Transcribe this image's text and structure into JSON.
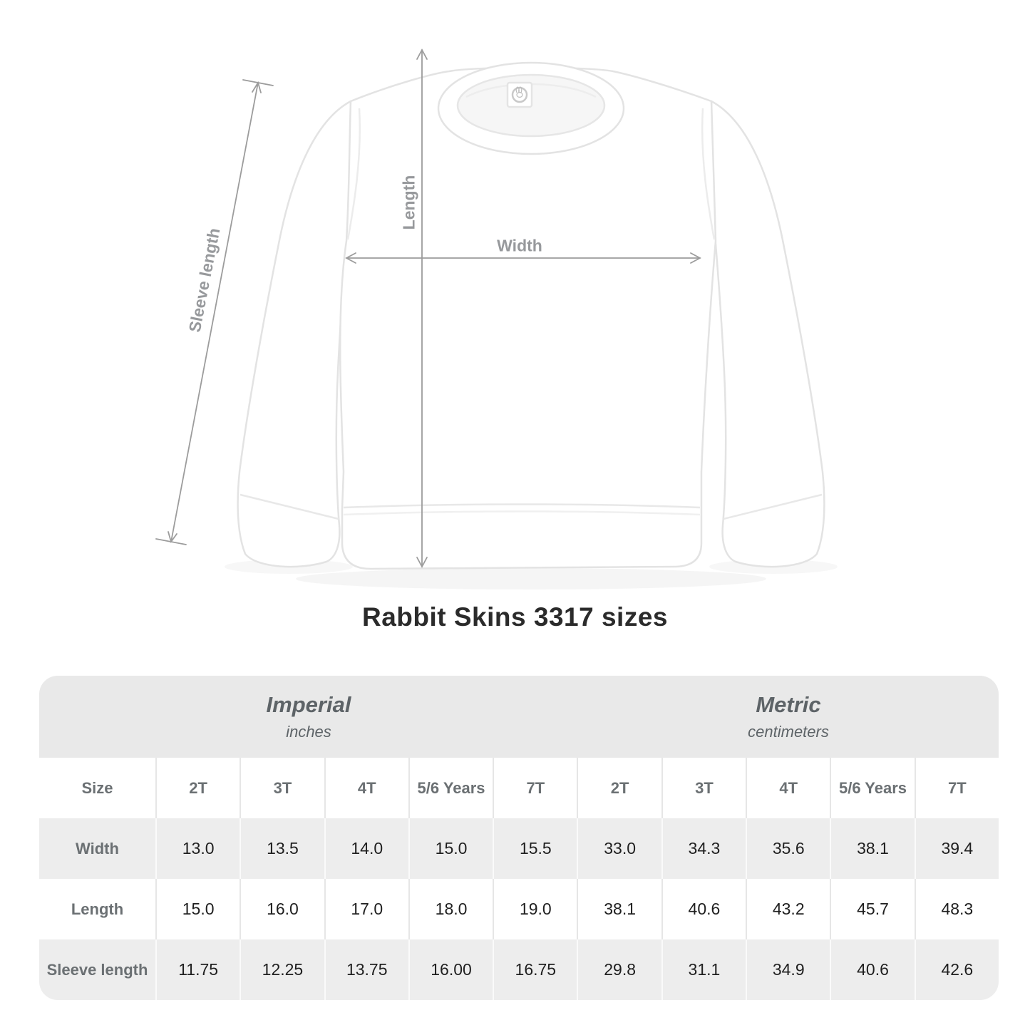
{
  "title": "Rabbit Skins 3317 sizes",
  "diagram": {
    "width_label": "Width",
    "length_label": "Length",
    "sleeve_label": "Sleeve length"
  },
  "table": {
    "unit_groups": [
      {
        "label": "Imperial",
        "sublabel": "inches"
      },
      {
        "label": "Metric",
        "sublabel": "centimeters"
      }
    ],
    "size_header": "Size",
    "columns": [
      "2T",
      "3T",
      "4T",
      "5/6 Years",
      "7T",
      "2T",
      "3T",
      "4T",
      "5/6 Years",
      "7T"
    ],
    "rows": [
      {
        "label": "Width",
        "values": [
          "13.0",
          "13.5",
          "14.0",
          "15.0",
          "15.5",
          "33.0",
          "34.3",
          "35.6",
          "38.1",
          "39.4"
        ]
      },
      {
        "label": "Length",
        "values": [
          "15.0",
          "16.0",
          "17.0",
          "18.0",
          "19.0",
          "38.1",
          "40.6",
          "43.2",
          "45.7",
          "48.3"
        ]
      },
      {
        "label": "Sleeve length",
        "values": [
          "11.75",
          "12.25",
          "13.75",
          "16.00",
          "16.75",
          "29.8",
          "31.1",
          "34.9",
          "40.6",
          "42.6"
        ]
      }
    ]
  },
  "colors": {
    "band_gray": "#e9e9e9",
    "row_gray": "#ededed",
    "header_text": "#6b7073",
    "value_text": "#1f1f1f",
    "unit_text": "#5d6367",
    "arrow_gray": "#9c9c9c",
    "diagram_label_gray": "#97999c",
    "garment_outline": "#e3e3e3",
    "title_text": "#2b2b2b"
  }
}
